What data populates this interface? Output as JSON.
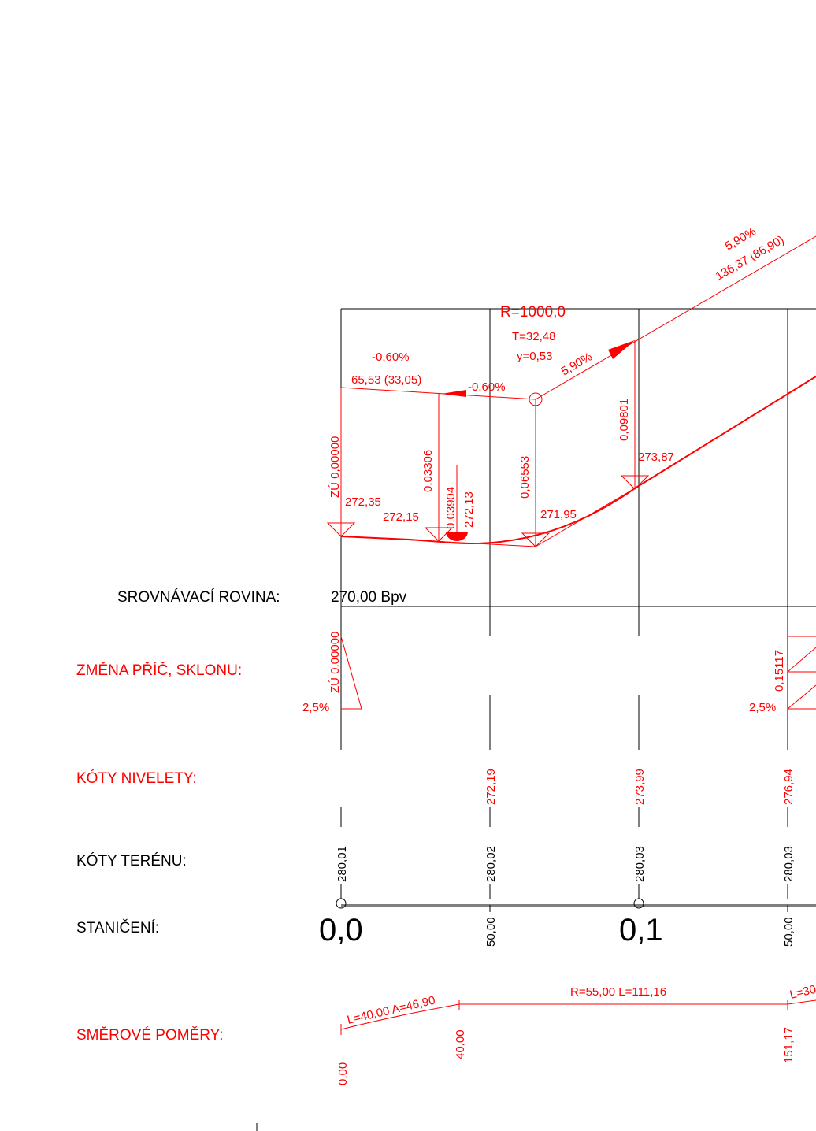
{
  "colors": {
    "ink": "#000000",
    "design": "#ff0000",
    "background": "#ffffff"
  },
  "profile": {
    "radius_label": "R=1000,0",
    "tangent_label": "T=32,48",
    "y_label": "y=0,53",
    "grade_in": "-0,60%",
    "grade_in_length": "65,53 (33,05)",
    "grade_in_arrow": "-0,60%",
    "grade_out": "5,90%",
    "grade_out_arrow": "5,90%",
    "grade_out_top": "5,90%",
    "grade_out_length": "136,37 (86,90)",
    "start_superelev": "ZÚ 0,00000",
    "elev_start": "272,35",
    "elev_low_a": "272,15",
    "elev_low_b": "272,13",
    "elev_vertex": "271,95",
    "elev_end": "273,87",
    "offset_a": "0,03306",
    "offset_b": "0,03904",
    "offset_c": "0,06553",
    "offset_d": "0,09801"
  },
  "rows": {
    "datum": {
      "label": "SROVNÁVACÍ ROVINA:",
      "value": "270,00 Bpv"
    },
    "cross_slope": {
      "label": "ZMĚNA PŘÍČ, SKLONU:",
      "v1": "ZÚ 0,00000",
      "v1_pct": "2,5%",
      "v2": "0,15117",
      "v2_pct": "2,5%"
    },
    "grade_elev": {
      "label": "KÓTY NIVELETY:",
      "values": [
        "272,19",
        "273,99",
        "276,94"
      ]
    },
    "terrain_elev": {
      "label": "KÓTY TERÉNU:",
      "values": [
        "280,01",
        "280,02",
        "280,03",
        "280,03"
      ]
    },
    "chainage": {
      "label": "STANIČENÍ:",
      "major": [
        "0,0",
        "0,1"
      ],
      "minor": [
        "50,00",
        "50,00"
      ]
    },
    "alignment": {
      "label": "SMĚROVÉ POMĚRY:",
      "spiral": "L=40,00 A=46,90",
      "curve": "R=55,00 L=111,16",
      "spiral_next": "L=30",
      "stations": [
        "0,00",
        "40,00",
        "151,17"
      ]
    }
  }
}
